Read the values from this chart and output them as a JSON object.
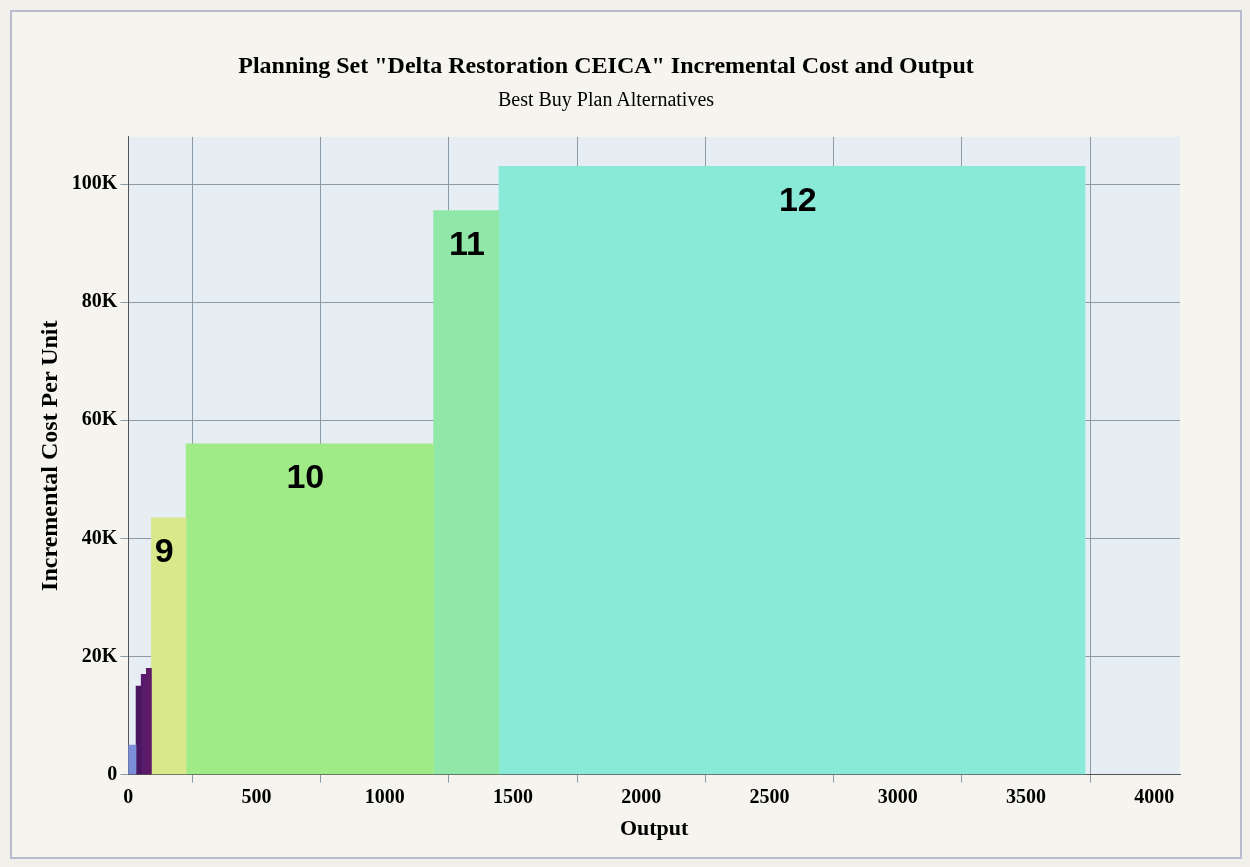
{
  "chart_data": {
    "type": "histogram",
    "title": "Planning Set \"Delta Restoration CEICA\" Incremental Cost and Output",
    "subtitle": "Best Buy Plan Alternatives",
    "xlabel": "Output",
    "ylabel": "Incremental Cost Per Unit",
    "bins": [
      0,
      30,
      50,
      70,
      90,
      225,
      1190,
      1445,
      3730
    ],
    "values": [
      5000,
      15000,
      17000,
      18000,
      43500,
      56000,
      95500,
      103000
    ],
    "colors": [
      "#7b8fd8",
      "#4a1660",
      "#5a1a6b",
      "#5e1a66",
      "#d8e88a",
      "#a0ea88",
      "#90e8a8",
      "#8aead8"
    ],
    "annotations": [
      {
        "text": "9",
        "x": 140,
        "y": 43500
      },
      {
        "text": "10",
        "x": 690,
        "y": 56000
      },
      {
        "text": "11",
        "x": 1320,
        "y": 95500
      },
      {
        "text": "12",
        "x": 2610,
        "y": 103000
      }
    ],
    "xlim": [
      0,
      4100
    ],
    "xticks": [
      0,
      500,
      1000,
      1500,
      2000,
      2500,
      3000,
      3500,
      4000
    ],
    "ylim": [
      0,
      108000
    ],
    "yticks": [
      0,
      {
        "value": 20000,
        "label": "20K"
      },
      {
        "value": 40000,
        "label": "40K"
      },
      {
        "value": 60000,
        "label": "60K"
      },
      {
        "value": 80000,
        "label": "80K"
      },
      {
        "value": 100000,
        "label": "100K"
      }
    ],
    "grid": true,
    "legend": false
  }
}
